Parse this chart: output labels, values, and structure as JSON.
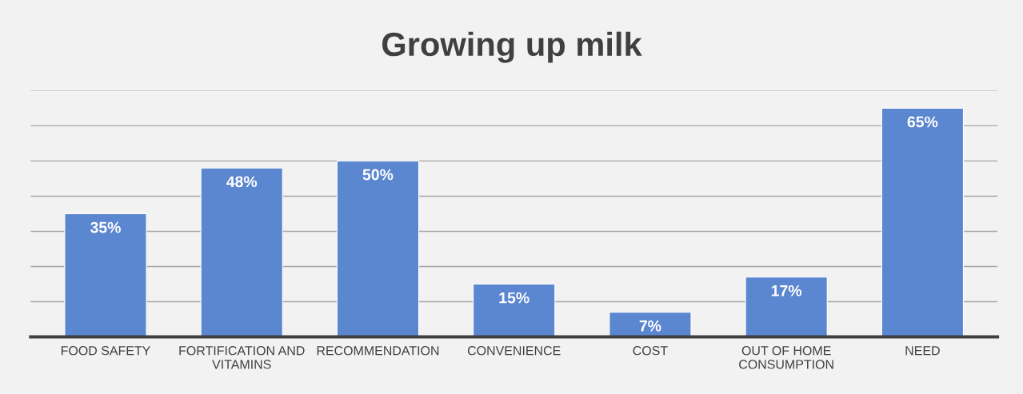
{
  "chart_data": {
    "type": "bar",
    "title": "Growing up milk",
    "categories": [
      "FOOD SAFETY",
      "FORTIFICATION AND\nVITAMINS",
      "RECOMMENDATION",
      "CONVENIENCE",
      "COST",
      "OUT OF HOME\nCONSUMPTION",
      "NEED"
    ],
    "values": [
      35,
      48,
      50,
      15,
      7,
      17,
      65
    ],
    "value_labels": [
      "35%",
      "48%",
      "50%",
      "15%",
      "7%",
      "17%",
      "65%"
    ],
    "color": "#5b86d0",
    "ylim": [
      0,
      70
    ],
    "yticks": [
      {
        "value": 0,
        "label": null
      },
      {
        "value": 10,
        "label": null
      },
      {
        "value": 20,
        "label": null
      },
      {
        "value": 30,
        "label": null
      },
      {
        "value": 40,
        "label": null
      },
      {
        "value": 50,
        "label": null
      },
      {
        "value": 60,
        "label": null
      },
      {
        "value": 70,
        "label": null
      }
    ],
    "grid": "y"
  }
}
